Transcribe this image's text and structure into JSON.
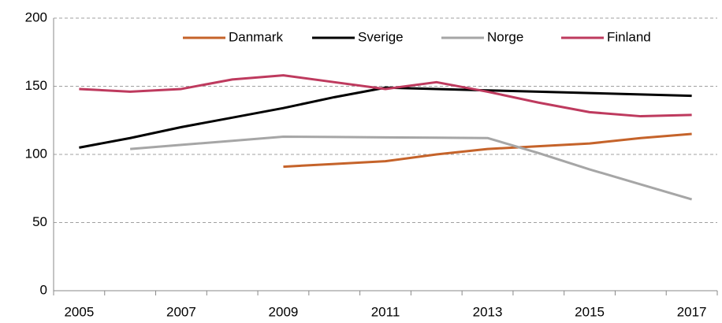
{
  "chart_data": {
    "type": "line",
    "categories": [
      2005,
      null,
      2007,
      null,
      2009,
      null,
      2011,
      null,
      2013,
      null,
      2015,
      null,
      2017
    ],
    "series": [
      {
        "name": "Danmark",
        "color": "#c5632a",
        "values": [
          null,
          null,
          null,
          null,
          91,
          93,
          95,
          100,
          104,
          106,
          108,
          112,
          115
        ]
      },
      {
        "name": "Sverige",
        "color": "#000000",
        "values": [
          105,
          112,
          120,
          127,
          134,
          142,
          149,
          148,
          147,
          146,
          145,
          144,
          143
        ]
      },
      {
        "name": "Norge",
        "color": "#a6a6a6",
        "values": [
          null,
          104,
          107,
          110,
          113,
          112.8,
          112.5,
          112.3,
          112,
          101,
          89,
          78,
          67
        ]
      },
      {
        "name": "Finland",
        "color": "#be3a5e",
        "values": [
          148,
          146,
          148,
          155,
          158,
          153,
          148,
          153,
          146,
          138,
          131,
          128,
          129
        ]
      }
    ],
    "ylim": [
      0,
      200
    ],
    "yticks": [
      0,
      50,
      100,
      150,
      200
    ],
    "grid": true,
    "legend": "top"
  }
}
